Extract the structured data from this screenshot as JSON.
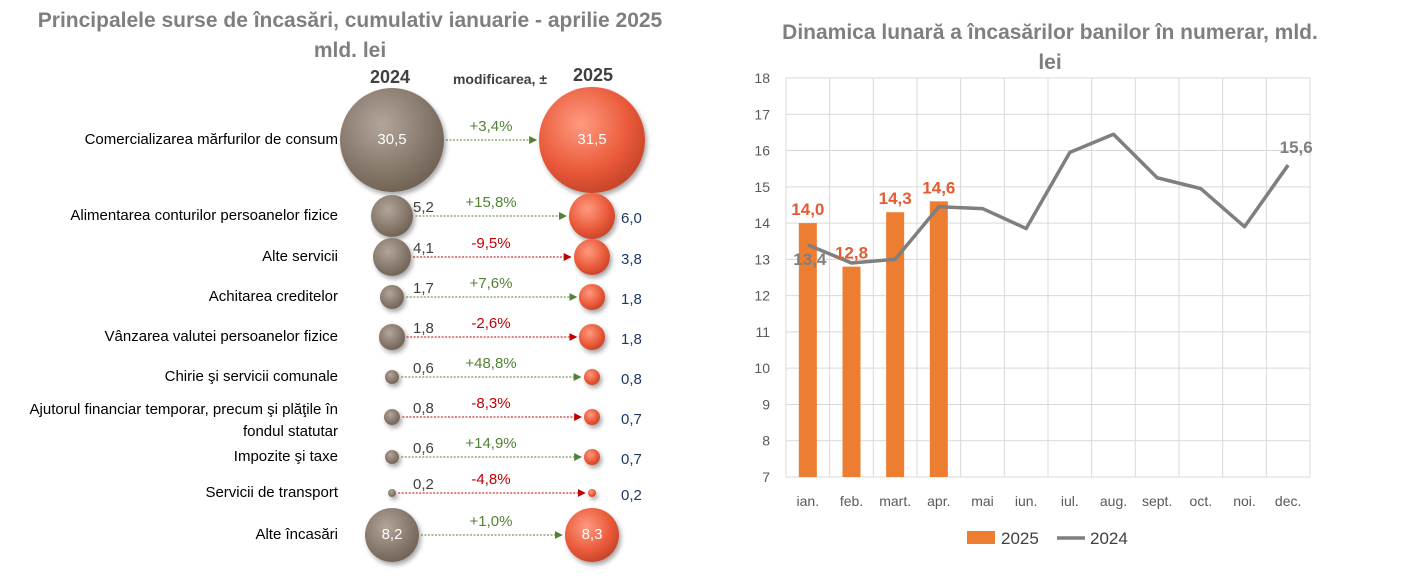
{
  "left": {
    "title": "Principalele surse de încasări, cumulativ ianuarie - aprilie 2025 mld. lei",
    "col_2024": "2024",
    "col_change": "modificarea, ±",
    "col_2025": "2025",
    "colors": {
      "bubble_2024": "#8b7d70",
      "bubble_2025": "#ea5a3a",
      "positive": "#548235",
      "negative": "#c00000"
    }
  },
  "right": {
    "title": "Dinamica lunară a încasărilor banilor în numerar, mld. lei",
    "colors": {
      "bar_2025": "#ed7d31",
      "line_2024": "#7f7f7f",
      "label_2025": "#e35b30"
    }
  },
  "chart_data": [
    {
      "type": "bubble-comparison",
      "title": "Principalele surse de încasări, cumulativ ianuarie - aprilie 2025 mld. lei",
      "unit": "mld. lei",
      "series": [
        {
          "name": "2024"
        },
        {
          "name": "2025"
        }
      ],
      "rows": [
        {
          "label": "Comercializarea mărfurilor de consum",
          "v2024": "30,5",
          "v2025": "31,5",
          "change": "+3,4%",
          "n2024": 30.5,
          "n2025": 31.5
        },
        {
          "label": "Alimentarea conturilor persoanelor fizice",
          "v2024": "5,2",
          "v2025": "6,0",
          "change": "+15,8%",
          "n2024": 5.2,
          "n2025": 6.0
        },
        {
          "label": "Alte servicii",
          "v2024": "4,1",
          "v2025": "3,8",
          "change": "-9,5%",
          "n2024": 4.1,
          "n2025": 3.8
        },
        {
          "label": "Achitarea creditelor",
          "v2024": "1,7",
          "v2025": "1,8",
          "change": "+7,6%",
          "n2024": 1.7,
          "n2025": 1.8
        },
        {
          "label": "Vânzarea valutei persoanelor fizice",
          "v2024": "1,8",
          "v2025": "1,8",
          "change": "-2,6%",
          "n2024": 1.8,
          "n2025": 1.8
        },
        {
          "label": "Chirie şi servicii comunale",
          "v2024": "0,6",
          "v2025": "0,8",
          "change": "+48,8%",
          "n2024": 0.6,
          "n2025": 0.8
        },
        {
          "label": "Ajutorul financiar temporar, precum şi plăţile în fondul statutar",
          "v2024": "0,8",
          "v2025": "0,7",
          "change": "-8,3%",
          "n2024": 0.8,
          "n2025": 0.7
        },
        {
          "label": "Impozite şi taxe",
          "v2024": "0,6",
          "v2025": "0,7",
          "change": "+14,9%",
          "n2024": 0.6,
          "n2025": 0.7
        },
        {
          "label": "Servicii de transport",
          "v2024": "0,2",
          "v2025": "0,2",
          "change": "-4,8%",
          "n2024": 0.2,
          "n2025": 0.2
        },
        {
          "label": "Alte încasări",
          "v2024": "8,2",
          "v2025": "8,3",
          "change": "+1,0%",
          "n2024": 8.2,
          "n2025": 8.3
        }
      ]
    },
    {
      "type": "bar+line",
      "title": "Dinamica lunară a încasărilor banilor în numerar, mld. lei",
      "categories": [
        "ian.",
        "feb.",
        "mart.",
        "apr.",
        "mai",
        "iun.",
        "iul.",
        "aug.",
        "sept.",
        "oct.",
        "noi.",
        "dec."
      ],
      "yticks": [
        "7",
        "8",
        "9",
        "10",
        "11",
        "12",
        "13",
        "14",
        "15",
        "16",
        "17",
        "18"
      ],
      "ylim": [
        7,
        18
      ],
      "grid": true,
      "legend_position": "bottom",
      "series": [
        {
          "name": "2025",
          "kind": "bar",
          "values": [
            14.0,
            12.8,
            14.3,
            14.6,
            null,
            null,
            null,
            null,
            null,
            null,
            null,
            null
          ],
          "labels": [
            "14,0",
            "12,8",
            "14,3",
            "14,6"
          ]
        },
        {
          "name": "2024",
          "kind": "line",
          "values": [
            13.4,
            12.9,
            13.0,
            14.45,
            14.4,
            13.85,
            15.95,
            16.45,
            15.25,
            14.95,
            13.9,
            15.6
          ],
          "labels": {
            "0": "13,4",
            "11": "15,6"
          }
        }
      ]
    }
  ]
}
